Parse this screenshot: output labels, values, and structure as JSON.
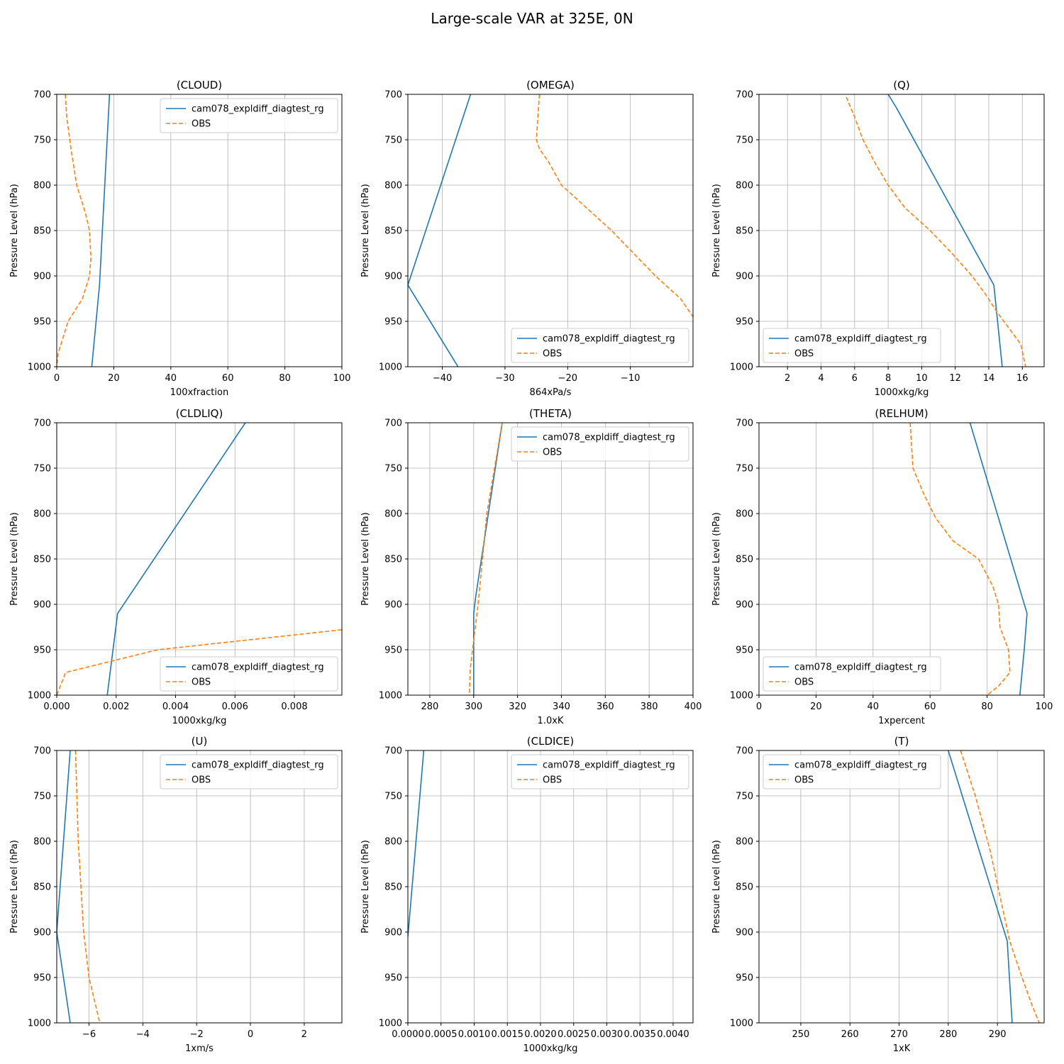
{
  "figure": {
    "title": "Large-scale VAR at 325E, 0N"
  },
  "colors": {
    "model": "#1f77b4",
    "obs": "#ff7f0e",
    "grid": "#b0b0b0"
  },
  "chart_data": [
    {
      "type": "line",
      "title": "(CLOUD)",
      "xlabel": "100xfraction",
      "ylabel": "Pressure Level (hPa)",
      "xlim": [
        0,
        100
      ],
      "ylim": [
        1000,
        700
      ],
      "grid": true,
      "xticks": [
        0,
        20,
        40,
        60,
        80,
        100
      ],
      "xtick_labels": [
        "0",
        "20",
        "40",
        "60",
        "80",
        "100"
      ],
      "yticks": [
        700,
        750,
        800,
        850,
        900,
        950,
        1000
      ],
      "ytick_labels": [
        "700",
        "750",
        "800",
        "850",
        "900",
        "950",
        "1000"
      ],
      "legend": "top-right",
      "series": [
        {
          "name": "cam078_expldiff_diagtest_rg",
          "style": "solid",
          "x": [
            18.5,
            15,
            12.3
          ],
          "y": [
            700,
            910,
            1000
          ]
        },
        {
          "name": "OBS",
          "style": "dashed",
          "x": [
            3,
            3.5,
            5,
            7,
            10,
            11.5,
            12,
            11.5,
            9,
            4,
            0.5,
            0
          ],
          "y": [
            700,
            725,
            760,
            800,
            830,
            850,
            880,
            900,
            925,
            950,
            985,
            1000
          ]
        }
      ]
    },
    {
      "type": "line",
      "title": "(OMEGA)",
      "xlabel": "864xPa/s",
      "ylabel": "Pressure Level (hPa)",
      "xlim": [
        -45.5,
        0
      ],
      "ylim": [
        1000,
        700
      ],
      "grid": true,
      "xticks": [
        -40,
        -30,
        -20,
        -10
      ],
      "xtick_labels": [
        "−40",
        "−30",
        "−20",
        "−10"
      ],
      "yticks": [
        700,
        750,
        800,
        850,
        900,
        950,
        1000
      ],
      "ytick_labels": [
        "700",
        "750",
        "800",
        "850",
        "900",
        "950",
        "1000"
      ],
      "legend": "bottom-right",
      "series": [
        {
          "name": "cam078_expldiff_diagtest_rg",
          "style": "solid",
          "x": [
            -35.5,
            -45.5,
            -37.5
          ],
          "y": [
            700,
            910,
            1000
          ]
        },
        {
          "name": "OBS",
          "style": "dashed",
          "x": [
            -24.5,
            -25,
            -24.5,
            -23,
            -21,
            -17,
            -13,
            -9.5,
            -6,
            -2,
            0
          ],
          "y": [
            700,
            750,
            760,
            775,
            800,
            825,
            850,
            875,
            900,
            925,
            945
          ]
        }
      ]
    },
    {
      "type": "line",
      "title": "(Q)",
      "xlabel": "1000xkg/kg",
      "ylabel": "Pressure Level (hPa)",
      "xlim": [
        0.3,
        17.3
      ],
      "ylim": [
        1000,
        700
      ],
      "grid": true,
      "xticks": [
        2,
        4,
        6,
        8,
        10,
        12,
        14,
        16
      ],
      "xtick_labels": [
        "2",
        "4",
        "6",
        "8",
        "10",
        "12",
        "14",
        "16"
      ],
      "yticks": [
        700,
        750,
        800,
        850,
        900,
        950,
        1000
      ],
      "ytick_labels": [
        "700",
        "750",
        "800",
        "850",
        "900",
        "950",
        "1000"
      ],
      "legend": "bottom-left",
      "series": [
        {
          "name": "cam078_expldiff_diagtest_rg",
          "style": "solid",
          "x": [
            8,
            8.5,
            14.3,
            14.8
          ],
          "y": [
            700,
            715,
            910,
            1000
          ]
        },
        {
          "name": "OBS",
          "style": "dashed",
          "x": [
            5.5,
            6,
            6.5,
            7.2,
            8,
            9,
            10.5,
            11.8,
            13,
            13.8,
            14.5,
            15.3,
            15.9,
            16.2
          ],
          "y": [
            703,
            725,
            750,
            775,
            800,
            825,
            850,
            875,
            900,
            920,
            940,
            960,
            975,
            1000
          ]
        }
      ]
    },
    {
      "type": "line",
      "title": "(CLDLIQ)",
      "xlabel": "1000xkg/kg",
      "ylabel": "Pressure Level (hPa)",
      "xlim": [
        0,
        0.0096
      ],
      "ylim": [
        1000,
        700
      ],
      "grid": true,
      "xticks": [
        0,
        0.002,
        0.004,
        0.006,
        0.008
      ],
      "xtick_labels": [
        "0.000",
        "0.002",
        "0.004",
        "0.006",
        "0.008"
      ],
      "yticks": [
        700,
        750,
        800,
        850,
        900,
        950,
        1000
      ],
      "ytick_labels": [
        "700",
        "750",
        "800",
        "850",
        "900",
        "950",
        "1000"
      ],
      "legend": "bottom-right",
      "series": [
        {
          "name": "cam078_expldiff_diagtest_rg",
          "style": "solid",
          "x": [
            0.00635,
            0.00205,
            0.0017
          ],
          "y": [
            700,
            910,
            1000
          ]
        },
        {
          "name": "OBS",
          "style": "dashed",
          "x": [
            0.0096,
            0.0034,
            0.0003,
            0
          ],
          "y": [
            928,
            950,
            975,
            1000
          ]
        }
      ]
    },
    {
      "type": "line",
      "title": "(THETA)",
      "xlabel": "1.0xK",
      "ylabel": "Pressure Level (hPa)",
      "xlim": [
        270,
        400
      ],
      "ylim": [
        1000,
        700
      ],
      "grid": true,
      "xticks": [
        280,
        300,
        320,
        340,
        360,
        380,
        400
      ],
      "xtick_labels": [
        "280",
        "300",
        "320",
        "340",
        "360",
        "380",
        "400"
      ],
      "yticks": [
        700,
        750,
        800,
        850,
        900,
        950,
        1000
      ],
      "ytick_labels": [
        "700",
        "750",
        "800",
        "850",
        "900",
        "950",
        "1000"
      ],
      "legend": "top-right",
      "series": [
        {
          "name": "cam078_expldiff_diagtest_rg",
          "style": "solid",
          "x": [
            313,
            301,
            300,
            300
          ],
          "y": [
            700,
            890,
            910,
            1000
          ]
        },
        {
          "name": "OBS",
          "style": "dashed",
          "x": [
            313,
            306,
            302,
            298.5,
            298
          ],
          "y": [
            700,
            800,
            900,
            970,
            1000
          ]
        }
      ]
    },
    {
      "type": "line",
      "title": "(RELHUM)",
      "xlabel": "1xpercent",
      "ylabel": "Pressure Level (hPa)",
      "xlim": [
        0,
        100
      ],
      "ylim": [
        1000,
        700
      ],
      "grid": true,
      "xticks": [
        0,
        20,
        40,
        60,
        80,
        100
      ],
      "xtick_labels": [
        "0",
        "20",
        "40",
        "60",
        "80",
        "100"
      ],
      "yticks": [
        700,
        750,
        800,
        850,
        900,
        950,
        1000
      ],
      "ytick_labels": [
        "700",
        "750",
        "800",
        "850",
        "900",
        "950",
        "1000"
      ],
      "legend": "bottom-left",
      "series": [
        {
          "name": "cam078_expldiff_diagtest_rg",
          "style": "solid",
          "x": [
            74,
            94,
            93,
            91.5
          ],
          "y": [
            700,
            910,
            950,
            1000
          ]
        },
        {
          "name": "OBS",
          "style": "dashed",
          "x": [
            53,
            54,
            58,
            62,
            68,
            77,
            82,
            84,
            84.5,
            87.5,
            88,
            84,
            80
          ],
          "y": [
            700,
            750,
            780,
            805,
            830,
            850,
            880,
            900,
            925,
            950,
            975,
            990,
            1000
          ]
        }
      ]
    },
    {
      "type": "line",
      "title": "(U)",
      "xlabel": "1xm/s",
      "ylabel": "Pressure Level (hPa)",
      "xlim": [
        -7.2,
        3.4
      ],
      "ylim": [
        1000,
        700
      ],
      "grid": true,
      "xticks": [
        -6,
        -4,
        -2,
        0,
        2
      ],
      "xtick_labels": [
        "−6",
        "−4",
        "−2",
        "0",
        "2"
      ],
      "yticks": [
        700,
        750,
        800,
        850,
        900,
        950,
        1000
      ],
      "ytick_labels": [
        "700",
        "750",
        "800",
        "850",
        "900",
        "950",
        "1000"
      ],
      "legend": "top-right",
      "series": [
        {
          "name": "cam078_expldiff_diagtest_rg",
          "style": "solid",
          "x": [
            -6.7,
            -7.2,
            -6.7
          ],
          "y": [
            700,
            900,
            1000
          ]
        },
        {
          "name": "OBS",
          "style": "dashed",
          "x": [
            -6.5,
            -6.4,
            -6.2,
            -6.0,
            -5.6
          ],
          "y": [
            700,
            800,
            900,
            950,
            1000
          ]
        }
      ]
    },
    {
      "type": "line",
      "title": "(CLDICE)",
      "xlabel": "1000xkg/kg",
      "ylabel": "Pressure Level (hPa)",
      "xlim": [
        0,
        0.0043
      ],
      "ylim": [
        1000,
        700
      ],
      "grid": true,
      "xticks": [
        0,
        0.0005,
        0.001,
        0.0015,
        0.002,
        0.0025,
        0.003,
        0.0035,
        0.004
      ],
      "xtick_labels": [
        "0.0000",
        "0.0005",
        "0.0010",
        "0.0015",
        "0.0020",
        "0.0025",
        "0.0030",
        "0.0035",
        "0.0040"
      ],
      "yticks": [
        700,
        750,
        800,
        850,
        900,
        950,
        1000
      ],
      "ytick_labels": [
        "700",
        "750",
        "800",
        "850",
        "900",
        "950",
        "1000"
      ],
      "legend": "top-right",
      "series": [
        {
          "name": "cam078_expldiff_diagtest_rg",
          "style": "solid",
          "x": [
            0.00024,
            0
          ],
          "y": [
            700,
            905
          ]
        },
        {
          "name": "OBS",
          "style": "dashed",
          "x": [],
          "y": []
        }
      ]
    },
    {
      "type": "line",
      "title": "(T)",
      "xlabel": "1xK",
      "ylabel": "Pressure Level (hPa)",
      "xlim": [
        241.5,
        299.5
      ],
      "ylim": [
        1000,
        700
      ],
      "grid": true,
      "xticks": [
        250,
        260,
        270,
        280,
        290
      ],
      "xtick_labels": [
        "250",
        "260",
        "270",
        "280",
        "290"
      ],
      "yticks": [
        700,
        750,
        800,
        850,
        900,
        950,
        1000
      ],
      "ytick_labels": [
        "700",
        "750",
        "800",
        "850",
        "900",
        "950",
        "1000"
      ],
      "legend": "top-left",
      "series": [
        {
          "name": "cam078_expldiff_diagtest_rg",
          "style": "solid",
          "x": [
            280,
            292,
            293
          ],
          "y": [
            700,
            910,
            1000
          ]
        },
        {
          "name": "OBS",
          "style": "dashed",
          "x": [
            282.5,
            285.5,
            288.5,
            292.5,
            295,
            297,
            298.5
          ],
          "y": [
            700,
            750,
            810,
            910,
            950,
            980,
            1000
          ]
        }
      ]
    }
  ]
}
